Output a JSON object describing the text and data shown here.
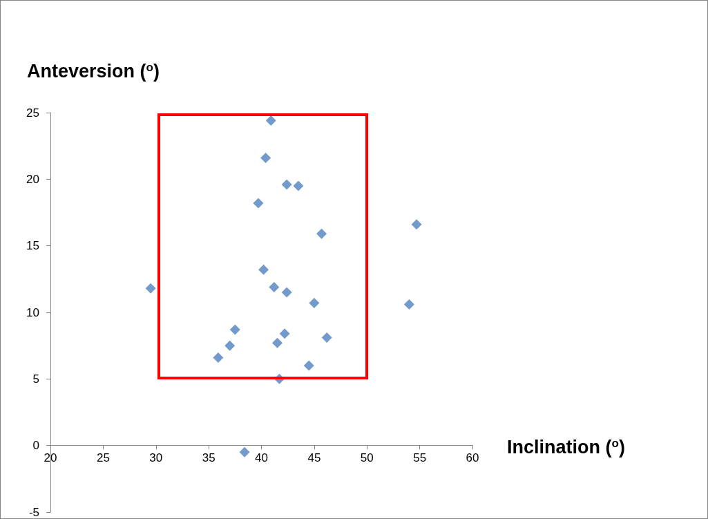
{
  "chart_data": {
    "type": "scatter",
    "xlabel": "Inclination ($^{o}$)",
    "ylabel": "Anteversion ($^{o}$)",
    "x": [
      40.9,
      40.4,
      42.4,
      43.5,
      39.7,
      45.7,
      54.7,
      29.5,
      40.2,
      41.2,
      42.4,
      45.0,
      54.0,
      37.5,
      37.0,
      35.9,
      42.2,
      41.5,
      46.2,
      44.5,
      41.7,
      38.4
    ],
    "series": [
      {
        "color": "#4f81bd",
        "values": [
          24.4,
          21.6,
          19.6,
          19.5,
          18.2,
          15.9,
          16.6,
          11.8,
          13.2,
          11.9,
          11.5,
          10.7,
          10.6,
          8.7,
          7.5,
          6.6,
          8.4,
          7.7,
          8.1,
          6.0,
          5.0,
          -0.5
        ]
      }
    ],
    "xlim": [
      20,
      60
    ],
    "xticks": [
      20,
      25,
      30,
      35,
      40,
      45,
      50,
      55,
      60
    ],
    "ylim": [
      -5,
      25
    ],
    "yticks": [
      -5,
      0,
      5,
      10,
      15,
      20,
      25
    ],
    "grid": false,
    "marker": "diamond"
  }
}
